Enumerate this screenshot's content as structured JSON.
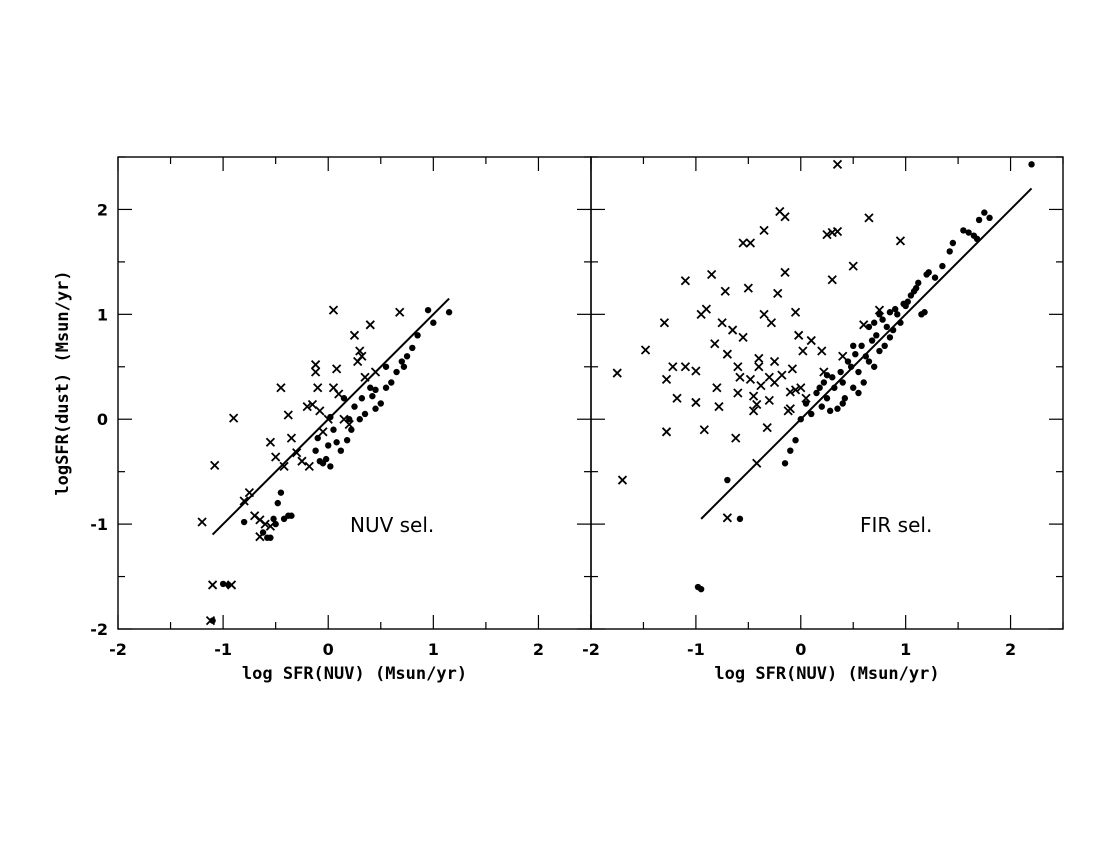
{
  "chart_data": [
    {
      "type": "scatter",
      "panel": "left",
      "annotation": "NUV sel.",
      "xlabel": "log SFR(NUV) (Msun/yr)",
      "ylabel": "logSFR(dust) (Msun/yr)",
      "xlim": [
        -2,
        2.5
      ],
      "ylim": [
        -2,
        2.5
      ],
      "xticks": [
        "-2",
        "-1",
        "0",
        "1",
        "2"
      ],
      "yticks": [
        "-2",
        "-1",
        "0",
        "1",
        "2"
      ],
      "fit_line": [
        [
          -1.1,
          -1.1
        ],
        [
          1.15,
          1.15
        ]
      ],
      "series": [
        {
          "marker": "cross",
          "points": [
            [
              -1.2,
              -0.98
            ],
            [
              -1.08,
              -0.44
            ],
            [
              -0.9,
              0.01
            ],
            [
              -0.8,
              -0.78
            ],
            [
              -0.75,
              -0.7
            ],
            [
              -0.7,
              -0.92
            ],
            [
              -0.65,
              -0.96
            ],
            [
              -0.6,
              -1.0
            ],
            [
              -0.55,
              -0.22
            ],
            [
              -0.5,
              -0.36
            ],
            [
              -0.45,
              0.3
            ],
            [
              -0.42,
              -0.45
            ],
            [
              -0.38,
              0.04
            ],
            [
              -0.35,
              -0.18
            ],
            [
              -0.3,
              -0.32
            ],
            [
              -0.25,
              -0.4
            ],
            [
              -0.2,
              0.12
            ],
            [
              -0.18,
              -0.45
            ],
            [
              -0.15,
              0.14
            ],
            [
              -0.12,
              0.52
            ],
            [
              -0.1,
              0.3
            ],
            [
              -0.08,
              0.08
            ],
            [
              -0.05,
              -0.12
            ],
            [
              0.0,
              0.0
            ],
            [
              0.05,
              1.04
            ],
            [
              0.08,
              0.48
            ],
            [
              0.1,
              0.24
            ],
            [
              0.15,
              0.0
            ],
            [
              0.2,
              -0.05
            ],
            [
              0.25,
              0.8
            ],
            [
              0.28,
              0.55
            ],
            [
              0.3,
              0.65
            ],
            [
              0.32,
              0.6
            ],
            [
              0.35,
              0.4
            ],
            [
              0.4,
              0.9
            ],
            [
              0.45,
              0.45
            ],
            [
              0.68,
              1.02
            ],
            [
              -1.1,
              -1.58
            ],
            [
              -0.92,
              -1.58
            ],
            [
              -1.12,
              -1.92
            ],
            [
              -0.12,
              0.45
            ],
            [
              0.05,
              0.3
            ],
            [
              -0.55,
              -1.02
            ],
            [
              -0.65,
              -1.12
            ]
          ]
        },
        {
          "marker": "dot",
          "points": [
            [
              -1.1,
              -1.92
            ],
            [
              -1.0,
              -1.57
            ],
            [
              -0.95,
              -1.58
            ],
            [
              -0.8,
              -0.98
            ],
            [
              -0.62,
              -1.08
            ],
            [
              -0.58,
              -1.13
            ],
            [
              -0.55,
              -1.13
            ],
            [
              -0.52,
              -0.95
            ],
            [
              -0.5,
              -1.0
            ],
            [
              -0.48,
              -0.8
            ],
            [
              -0.45,
              -0.7
            ],
            [
              -0.42,
              -0.95
            ],
            [
              -0.38,
              -0.92
            ],
            [
              -0.35,
              -0.92
            ],
            [
              -0.12,
              -0.3
            ],
            [
              -0.1,
              -0.18
            ],
            [
              -0.08,
              -0.4
            ],
            [
              -0.05,
              -0.42
            ],
            [
              0.0,
              -0.25
            ],
            [
              0.02,
              -0.45
            ],
            [
              0.05,
              -0.1
            ],
            [
              0.08,
              -0.22
            ],
            [
              0.12,
              -0.3
            ],
            [
              0.15,
              0.2
            ],
            [
              0.18,
              -0.2
            ],
            [
              0.2,
              0.0
            ],
            [
              0.22,
              -0.1
            ],
            [
              0.25,
              0.12
            ],
            [
              0.3,
              0.0
            ],
            [
              0.32,
              0.2
            ],
            [
              0.35,
              0.05
            ],
            [
              0.4,
              0.3
            ],
            [
              0.42,
              0.22
            ],
            [
              0.45,
              0.1
            ],
            [
              0.5,
              0.15
            ],
            [
              0.55,
              0.3
            ],
            [
              0.6,
              0.35
            ],
            [
              0.65,
              0.45
            ],
            [
              0.7,
              0.55
            ],
            [
              0.72,
              0.5
            ],
            [
              0.75,
              0.6
            ],
            [
              0.8,
              0.68
            ],
            [
              0.85,
              0.8
            ],
            [
              0.95,
              1.04
            ],
            [
              1.0,
              0.92
            ],
            [
              1.15,
              1.02
            ],
            [
              0.02,
              0.02
            ],
            [
              -0.02,
              -0.38
            ],
            [
              0.55,
              0.5
            ],
            [
              0.45,
              0.28
            ]
          ]
        }
      ]
    },
    {
      "type": "scatter",
      "panel": "right",
      "annotation": "FIR sel.",
      "xlabel": "log SFR(NUV) (Msun/yr)",
      "ylabel": "",
      "xlim": [
        -2,
        2.5
      ],
      "ylim": [
        -2,
        2.5
      ],
      "xticks": [
        "-2",
        "-1",
        "0",
        "1",
        "2"
      ],
      "yticks": [],
      "fit_line": [
        [
          -0.95,
          -0.95
        ],
        [
          2.2,
          2.2
        ]
      ],
      "series": [
        {
          "marker": "cross",
          "points": [
            [
              -1.75,
              0.44
            ],
            [
              -1.7,
              -0.58
            ],
            [
              -1.48,
              0.66
            ],
            [
              -1.3,
              0.92
            ],
            [
              -1.28,
              0.38
            ],
            [
              -1.28,
              -0.12
            ],
            [
              -1.22,
              0.5
            ],
            [
              -1.18,
              0.2
            ],
            [
              -1.1,
              1.32
            ],
            [
              -1.1,
              0.5
            ],
            [
              -1.0,
              0.46
            ],
            [
              -1.0,
              0.16
            ],
            [
              -0.95,
              1.0
            ],
            [
              -0.92,
              -0.1
            ],
            [
              -0.9,
              1.05
            ],
            [
              -0.85,
              1.38
            ],
            [
              -0.82,
              0.72
            ],
            [
              -0.8,
              0.3
            ],
            [
              -0.78,
              0.12
            ],
            [
              -0.75,
              0.92
            ],
            [
              -0.72,
              1.22
            ],
            [
              -0.7,
              0.62
            ],
            [
              -0.65,
              0.85
            ],
            [
              -0.62,
              -0.18
            ],
            [
              -0.6,
              0.5
            ],
            [
              -0.55,
              0.78
            ],
            [
              -0.5,
              1.25
            ],
            [
              -0.48,
              0.38
            ],
            [
              -0.45,
              0.22
            ],
            [
              -0.42,
              0.14
            ],
            [
              -0.4,
              0.58
            ],
            [
              -0.38,
              0.32
            ],
            [
              -0.35,
              1.0
            ],
            [
              -0.32,
              -0.08
            ],
            [
              -0.3,
              0.18
            ],
            [
              -0.28,
              0.92
            ],
            [
              -0.25,
              0.35
            ],
            [
              -0.22,
              1.2
            ],
            [
              -0.2,
              1.98
            ],
            [
              -0.18,
              0.42
            ],
            [
              -0.15,
              1.4
            ],
            [
              -0.12,
              0.08
            ],
            [
              -0.1,
              0.26
            ],
            [
              -0.08,
              0.48
            ],
            [
              -0.05,
              1.02
            ],
            [
              -0.02,
              0.8
            ],
            [
              0.0,
              0.3
            ],
            [
              0.02,
              0.65
            ],
            [
              0.05,
              0.2
            ],
            [
              0.25,
              1.76
            ],
            [
              0.3,
              1.78
            ],
            [
              0.35,
              1.79
            ],
            [
              0.35,
              2.43
            ],
            [
              0.4,
              0.6
            ],
            [
              0.5,
              1.46
            ],
            [
              0.6,
              0.9
            ],
            [
              0.65,
              1.92
            ],
            [
              0.75,
              1.04
            ],
            [
              0.95,
              1.7
            ],
            [
              -0.55,
              1.68
            ],
            [
              -0.48,
              1.68
            ],
            [
              -0.7,
              -0.94
            ],
            [
              -0.35,
              1.8
            ],
            [
              -0.15,
              1.93
            ],
            [
              0.3,
              1.33
            ],
            [
              0.2,
              0.65
            ],
            [
              0.22,
              0.45
            ],
            [
              0.1,
              0.75
            ],
            [
              -0.25,
              0.55
            ],
            [
              -0.6,
              0.25
            ],
            [
              -0.45,
              0.08
            ],
            [
              -0.3,
              0.4
            ],
            [
              -0.05,
              0.28
            ],
            [
              -0.1,
              0.1
            ],
            [
              -0.42,
              -0.42
            ],
            [
              -0.58,
              0.4
            ],
            [
              -0.4,
              0.5
            ]
          ]
        },
        {
          "marker": "dot",
          "points": [
            [
              -0.98,
              -1.6
            ],
            [
              -0.95,
              -1.62
            ],
            [
              -0.7,
              -0.58
            ],
            [
              -0.58,
              -0.95
            ],
            [
              -0.15,
              -0.42
            ],
            [
              -0.1,
              -0.3
            ],
            [
              -0.05,
              -0.2
            ],
            [
              0.0,
              0.0
            ],
            [
              0.05,
              0.15
            ],
            [
              0.1,
              0.05
            ],
            [
              0.15,
              0.25
            ],
            [
              0.18,
              0.3
            ],
            [
              0.2,
              0.12
            ],
            [
              0.22,
              0.35
            ],
            [
              0.25,
              0.2
            ],
            [
              0.28,
              0.08
            ],
            [
              0.3,
              0.4
            ],
            [
              0.32,
              0.3
            ],
            [
              0.35,
              0.1
            ],
            [
              0.38,
              0.45
            ],
            [
              0.4,
              0.35
            ],
            [
              0.42,
              0.2
            ],
            [
              0.45,
              0.55
            ],
            [
              0.48,
              0.5
            ],
            [
              0.5,
              0.3
            ],
            [
              0.52,
              0.62
            ],
            [
              0.55,
              0.45
            ],
            [
              0.58,
              0.7
            ],
            [
              0.6,
              0.35
            ],
            [
              0.62,
              0.6
            ],
            [
              0.65,
              0.88
            ],
            [
              0.68,
              0.75
            ],
            [
              0.7,
              0.92
            ],
            [
              0.72,
              0.8
            ],
            [
              0.75,
              1.0
            ],
            [
              0.78,
              0.95
            ],
            [
              0.8,
              0.7
            ],
            [
              0.82,
              0.88
            ],
            [
              0.85,
              1.02
            ],
            [
              0.88,
              0.85
            ],
            [
              0.9,
              1.05
            ],
            [
              0.92,
              1.0
            ],
            [
              0.95,
              0.92
            ],
            [
              0.98,
              1.1
            ],
            [
              1.0,
              1.08
            ],
            [
              1.02,
              1.12
            ],
            [
              1.05,
              1.18
            ],
            [
              1.08,
              1.22
            ],
            [
              1.1,
              1.25
            ],
            [
              1.12,
              1.3
            ],
            [
              1.15,
              1.0
            ],
            [
              1.18,
              1.02
            ],
            [
              1.2,
              1.38
            ],
            [
              1.22,
              1.4
            ],
            [
              1.28,
              1.35
            ],
            [
              1.35,
              1.46
            ],
            [
              1.42,
              1.6
            ],
            [
              1.45,
              1.68
            ],
            [
              1.55,
              1.8
            ],
            [
              1.6,
              1.78
            ],
            [
              1.65,
              1.75
            ],
            [
              1.68,
              1.72
            ],
            [
              1.7,
              1.9
            ],
            [
              1.75,
              1.97
            ],
            [
              1.8,
              1.92
            ],
            [
              2.2,
              2.43
            ],
            [
              0.65,
              0.55
            ],
            [
              0.75,
              0.65
            ],
            [
              0.55,
              0.25
            ],
            [
              0.4,
              0.15
            ],
            [
              0.25,
              0.42
            ],
            [
              0.5,
              0.7
            ],
            [
              0.7,
              0.5
            ],
            [
              0.85,
              0.78
            ]
          ]
        }
      ]
    }
  ]
}
